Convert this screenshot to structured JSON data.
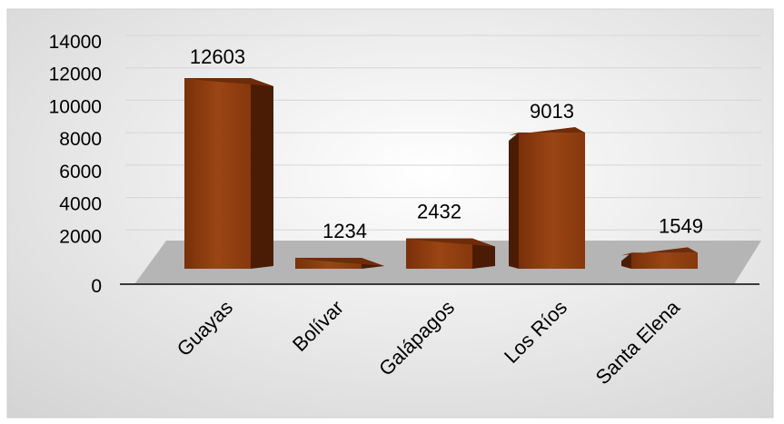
{
  "chart_data": {
    "type": "bar",
    "title": "",
    "xlabel": "",
    "ylabel": "",
    "categories": [
      "Guayas",
      "Bolívar",
      "Galápagos",
      "Los Ríos",
      "Santa Elena"
    ],
    "values": [
      12603,
      1234,
      2432,
      9013,
      1549
    ],
    "data_labels": [
      "12603",
      "1234",
      "2432",
      "9013",
      "1549"
    ],
    "y_ticks": [
      "0",
      "2000",
      "4000",
      "6000",
      "8000",
      "10000",
      "12000",
      "14000"
    ],
    "ylim": [
      0,
      14000
    ],
    "grid": true,
    "legend": "none",
    "style": "3d-columns",
    "colors": {
      "bar_front": "#8b3a0e",
      "bar_side": "#4a1c05",
      "bar_top": "#6e2c09",
      "floor": "#b5b5b5",
      "background": "#e2e2e2"
    }
  }
}
